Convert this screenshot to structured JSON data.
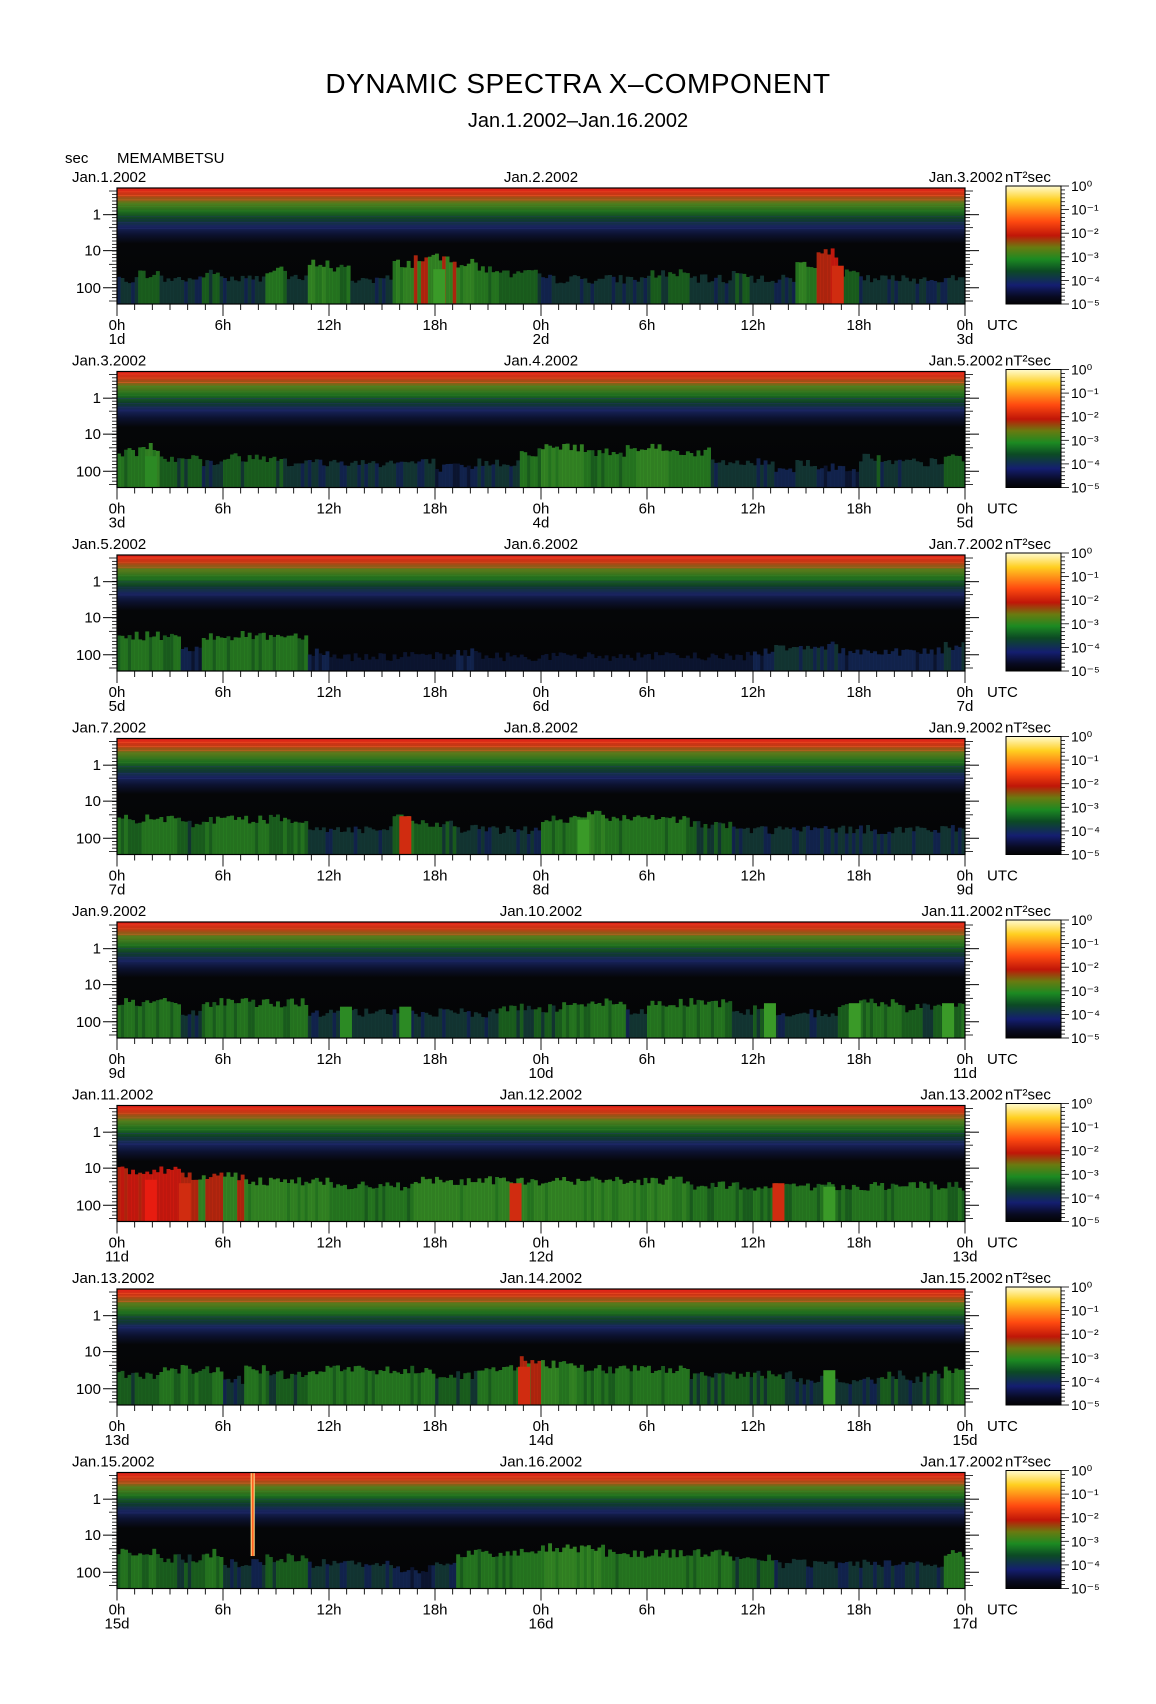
{
  "header": {
    "title": "DYNAMIC SPECTRA X–COMPONENT",
    "subtitle": "Jan.1.2002–Jan.16.2002",
    "unit_left": "sec",
    "station": "MEMAMBETSU"
  },
  "chart_data": [
    {
      "type": "heatmap",
      "left_date": "Jan.1.2002",
      "mid_date": "Jan.2.2002",
      "right_date": "Jan.3.2002",
      "day_labels": [
        "1d",
        "2d",
        "3d"
      ],
      "activity": [
        3,
        4,
        3,
        3,
        4,
        3,
        3,
        5,
        3,
        6,
        5,
        3,
        3,
        6,
        7,
        7,
        6,
        5,
        4,
        4,
        3,
        3,
        3,
        3,
        3,
        4,
        4,
        3,
        3,
        4,
        3,
        3,
        6,
        8,
        4,
        3,
        3,
        3,
        3,
        3
      ],
      "bursts": [
        {
          "t": 0.38,
          "v": 6
        },
        {
          "t": 0.85,
          "v": 7
        }
      ]
    },
    {
      "type": "heatmap",
      "left_date": "Jan.3.2002",
      "mid_date": "Jan.4.2002",
      "right_date": "Jan.5.2002",
      "day_labels": [
        "3d",
        "4d",
        "5d"
      ],
      "activity": [
        5,
        6,
        4,
        4,
        3,
        4,
        4,
        4,
        3,
        3,
        3,
        3,
        3,
        3,
        3,
        2,
        2,
        3,
        3,
        5,
        6,
        6,
        5,
        5,
        6,
        6,
        5,
        5,
        3,
        3,
        3,
        2,
        3,
        2,
        2,
        4,
        3,
        3,
        3,
        4
      ],
      "bursts": [
        {
          "t": 0.04,
          "v": 5
        }
      ]
    },
    {
      "type": "heatmap",
      "left_date": "Jan.5.2002",
      "mid_date": "Jan.6.2002",
      "right_date": "Jan.7.2002",
      "day_labels": [
        "5d",
        "6d",
        "7d"
      ],
      "activity": [
        5,
        5,
        5,
        2,
        5,
        5,
        5,
        5,
        5,
        2,
        1,
        1,
        1,
        1,
        1,
        1,
        2,
        1,
        1,
        1,
        1,
        1,
        1,
        1,
        1,
        1,
        1,
        1,
        1,
        1,
        2,
        3,
        3,
        3,
        2,
        2,
        2,
        2,
        2,
        3
      ],
      "bursts": []
    },
    {
      "type": "heatmap",
      "left_date": "Jan.7.2002",
      "mid_date": "Jan.8.2002",
      "right_date": "Jan.9.2002",
      "day_labels": [
        "7d",
        "8d",
        "9d"
      ],
      "activity": [
        5,
        5,
        5,
        4,
        5,
        5,
        5,
        5,
        5,
        3,
        3,
        3,
        3,
        5,
        4,
        4,
        3,
        3,
        3,
        3,
        5,
        5,
        6,
        5,
        5,
        5,
        5,
        4,
        4,
        3,
        3,
        3,
        3,
        3,
        3,
        3,
        3,
        3,
        3,
        3
      ],
      "bursts": [
        {
          "t": 0.34,
          "v": 7
        },
        {
          "t": 0.55,
          "v": 6
        }
      ]
    },
    {
      "type": "heatmap",
      "left_date": "Jan.9.2002",
      "mid_date": "Jan.10.2002",
      "right_date": "Jan.11.2002",
      "day_labels": [
        "9d",
        "10d",
        "11d"
      ],
      "activity": [
        5,
        5,
        5,
        3,
        5,
        5,
        5,
        5,
        5,
        3,
        3,
        3,
        3,
        3,
        3,
        3,
        3,
        3,
        4,
        4,
        4,
        5,
        5,
        5,
        3,
        5,
        5,
        5,
        5,
        3,
        4,
        3,
        3,
        3,
        4,
        5,
        5,
        4,
        4,
        5
      ],
      "bursts": [
        {
          "t": 0.27,
          "v": 5
        },
        {
          "t": 0.34,
          "v": 5
        },
        {
          "t": 0.77,
          "v": 6
        },
        {
          "t": 0.87,
          "v": 6
        },
        {
          "t": 0.98,
          "v": 6
        }
      ]
    },
    {
      "type": "heatmap",
      "left_date": "Jan.11.2002",
      "mid_date": "Jan.12.2002",
      "right_date": "Jan.13.2002",
      "day_labels": [
        "11d",
        "12d",
        "13d"
      ],
      "activity": [
        8,
        8,
        8,
        7,
        7,
        7,
        6,
        6,
        6,
        6,
        5,
        5,
        5,
        5,
        6,
        6,
        6,
        6,
        6,
        6,
        6,
        6,
        6,
        6,
        6,
        6,
        6,
        5,
        5,
        5,
        5,
        5,
        5,
        5,
        5,
        5,
        5,
        5,
        5,
        5
      ],
      "bursts": [
        {
          "t": 0.04,
          "v": 8
        },
        {
          "t": 0.08,
          "v": 7
        },
        {
          "t": 0.47,
          "v": 7
        },
        {
          "t": 0.78,
          "v": 7
        },
        {
          "t": 0.84,
          "v": 6
        }
      ]
    },
    {
      "type": "heatmap",
      "left_date": "Jan.13.2002",
      "mid_date": "Jan.14.2002",
      "right_date": "Jan.15.2002",
      "day_labels": [
        "13d",
        "14d",
        "15d"
      ],
      "activity": [
        4,
        4,
        5,
        5,
        5,
        3,
        5,
        4,
        4,
        5,
        5,
        5,
        5,
        5,
        5,
        4,
        4,
        5,
        5,
        7,
        6,
        6,
        5,
        5,
        5,
        5,
        5,
        4,
        4,
        4,
        4,
        4,
        3,
        3,
        3,
        3,
        4,
        3,
        4,
        5
      ],
      "bursts": [
        {
          "t": 0.48,
          "v": 7
        },
        {
          "t": 0.84,
          "v": 6
        }
      ]
    },
    {
      "type": "heatmap",
      "left_date": "Jan.15.2002",
      "mid_date": "Jan.16.2002",
      "right_date": "Jan.17.2002",
      "day_labels": [
        "15d",
        "16d",
        "17d"
      ],
      "activity": [
        5,
        5,
        4,
        4,
        5,
        3,
        3,
        4,
        4,
        3,
        3,
        3,
        3,
        2,
        2,
        3,
        5,
        5,
        5,
        5,
        6,
        6,
        6,
        5,
        5,
        5,
        5,
        5,
        5,
        4,
        4,
        3,
        3,
        3,
        3,
        3,
        3,
        3,
        3,
        5
      ],
      "bursts": [
        {
          "t": 0.16,
          "v": 10
        }
      ]
    }
  ],
  "axes": {
    "y_ticks": [
      "1",
      "10",
      "100"
    ],
    "x_ticks": [
      "0h",
      "6h",
      "12h",
      "18h",
      "0h",
      "6h",
      "12h",
      "18h",
      "0h"
    ],
    "x_unit": "UTC"
  },
  "colorbar": {
    "unit": "nT²sec",
    "ticks": [
      "10⁰",
      "10⁻¹",
      "10⁻²",
      "10⁻³",
      "10⁻⁴",
      "10⁻⁵"
    ]
  }
}
